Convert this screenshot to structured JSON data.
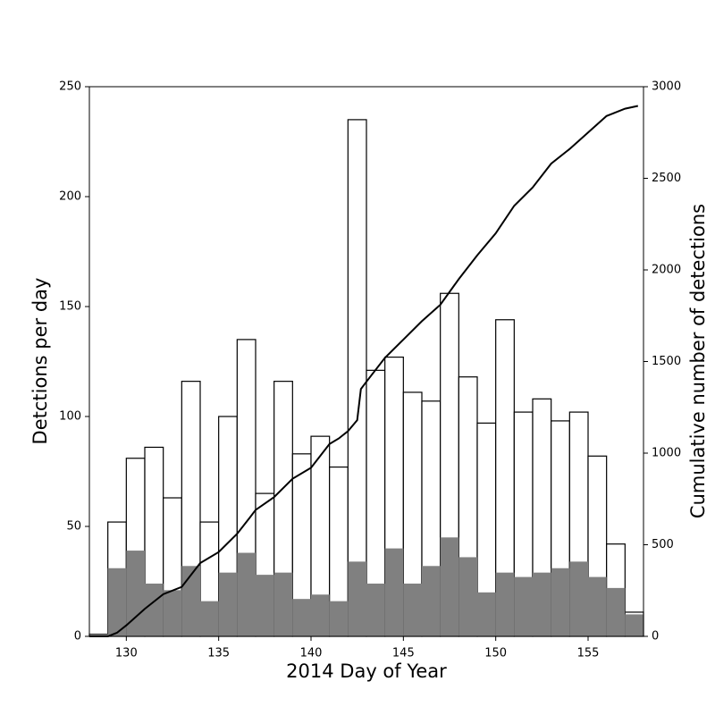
{
  "chart_data": {
    "type": "histogram",
    "xlabel": "2014 Day of Year",
    "ylabel": "Detctions per day",
    "y2label": "Cumulative number of detections",
    "bins": [
      128,
      129,
      130,
      131,
      132,
      133,
      134,
      135,
      136,
      137,
      138,
      139,
      140,
      141,
      142,
      143,
      144,
      145,
      146,
      147,
      148,
      149,
      150,
      151,
      152,
      153,
      154,
      155,
      156,
      157,
      158
    ],
    "series": [
      {
        "color": "#ffffff",
        "edgecolor": "#000000",
        "values": [
          1,
          52,
          81,
          86,
          63,
          116,
          52,
          100,
          135,
          65,
          116,
          83,
          91,
          77,
          235,
          121,
          127,
          111,
          107,
          156,
          118,
          97,
          144,
          102,
          108,
          98,
          102,
          82,
          42,
          11
        ]
      },
      {
        "color": "#808080",
        "values": [
          1,
          31,
          39,
          24,
          21,
          32,
          16,
          29,
          38,
          28,
          29,
          17,
          19,
          16,
          34,
          24,
          40,
          24,
          32,
          45,
          36,
          20,
          29,
          27,
          29,
          31,
          34,
          27,
          22,
          10
        ]
      }
    ],
    "lines": [
      {
        "axis": "y2",
        "color": "#000000",
        "x": [
          128,
          129,
          129.5,
          130,
          131,
          132,
          133,
          134,
          135,
          136,
          136.7,
          137,
          138,
          139,
          140,
          141,
          141.5,
          142,
          142.5,
          142.7,
          143,
          144,
          145,
          146,
          147,
          148,
          149,
          150,
          151,
          152,
          153,
          154,
          155,
          156,
          157,
          157.7
        ],
        "values": [
          0,
          0,
          20,
          60,
          150,
          230,
          270,
          400,
          460,
          560,
          650,
          690,
          760,
          860,
          920,
          1050,
          1080,
          1120,
          1180,
          1350,
          1390,
          1520,
          1620,
          1720,
          1810,
          1950,
          2080,
          2200,
          2350,
          2450,
          2580,
          2660,
          2750,
          2840,
          2880,
          2895
        ]
      }
    ],
    "xlim": [
      128,
      158
    ],
    "xticks": [
      130,
      135,
      140,
      145,
      150,
      155
    ],
    "ylim": [
      0,
      250
    ],
    "yticks": [
      0,
      50,
      100,
      150,
      200,
      250
    ],
    "y2lim": [
      0,
      3000
    ],
    "y2ticks": [
      0,
      500,
      1000,
      1500,
      2000,
      2500,
      3000
    ]
  }
}
